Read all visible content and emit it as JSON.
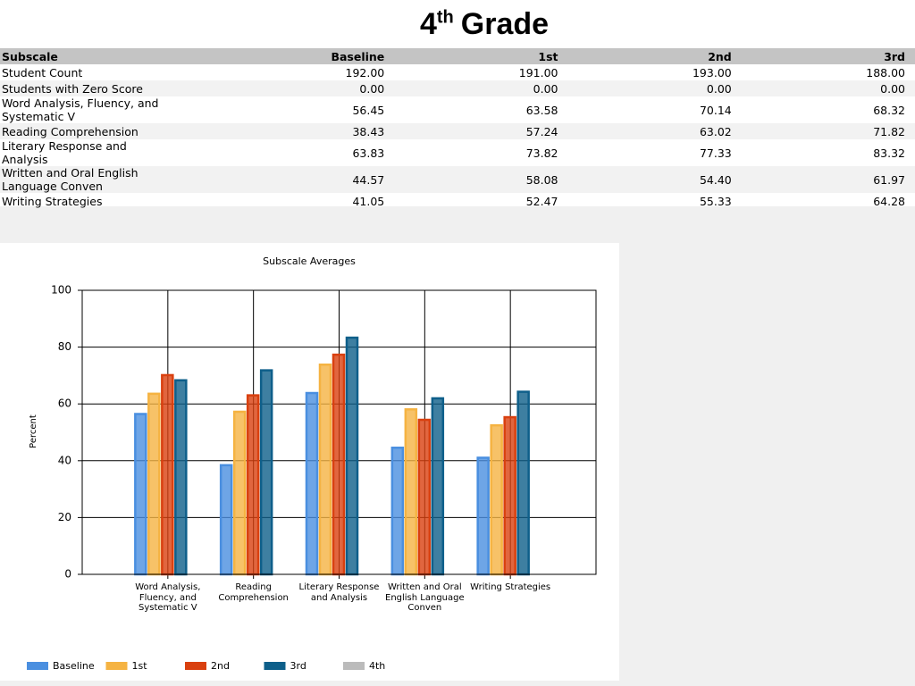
{
  "header": {
    "title": {
      "main": "4",
      "sup": "th",
      "rest": "Grade"
    }
  },
  "table": {
    "headers": [
      "Subscale",
      "Baseline",
      "1st",
      "2nd",
      "3rd"
    ],
    "rows": [
      [
        "Student Count",
        "192.00",
        "191.00",
        "193.00",
        "188.00"
      ],
      [
        "Students with Zero Score",
        "0.00",
        "0.00",
        "0.00",
        "0.00"
      ],
      [
        "Word Analysis, Fluency, and Systematic V",
        "56.45",
        "63.58",
        "70.14",
        "68.32"
      ],
      [
        "Reading Comprehension",
        "38.43",
        "57.24",
        "63.02",
        "71.82"
      ],
      [
        "Literary Response and Analysis",
        "63.83",
        "73.82",
        "77.33",
        "83.32"
      ],
      [
        "Written and Oral English Language Conven",
        "44.57",
        "58.08",
        "54.40",
        "61.97"
      ],
      [
        "Writing Strategies",
        "41.05",
        "52.47",
        "55.33",
        "64.28"
      ]
    ]
  },
  "chart_data": {
    "type": "bar",
    "title": "Subscale Averages",
    "y_label": "Percent",
    "categories": [
      "Word Analysis, Fluency, and Systematic V",
      "Reading Comprehension",
      "Literary Response and Analysis",
      "Written and Oral English Language Conven",
      "Writing Strategies"
    ],
    "series": [
      {
        "name": "Baseline",
        "color": "#4a8fe0",
        "values": [
          56.45,
          38.43,
          63.83,
          44.57,
          41.05
        ]
      },
      {
        "name": "1st",
        "color": "#f5b342",
        "values": [
          63.58,
          57.24,
          73.82,
          58.08,
          52.47
        ]
      },
      {
        "name": "2nd",
        "color": "#d9400f",
        "values": [
          70.14,
          63.02,
          77.33,
          54.4,
          55.33
        ]
      },
      {
        "name": "3rd",
        "color": "#0e5f8a",
        "values": [
          68.32,
          71.82,
          83.32,
          61.97,
          64.28
        ]
      },
      {
        "name": "4th",
        "color": "#bbbbbb",
        "values": [
          null,
          null,
          null,
          null,
          null
        ]
      }
    ],
    "ylim": [
      0,
      100
    ],
    "yticks": [
      0,
      20,
      40,
      60,
      80,
      100
    ],
    "grid": true,
    "legend": "bottom"
  }
}
